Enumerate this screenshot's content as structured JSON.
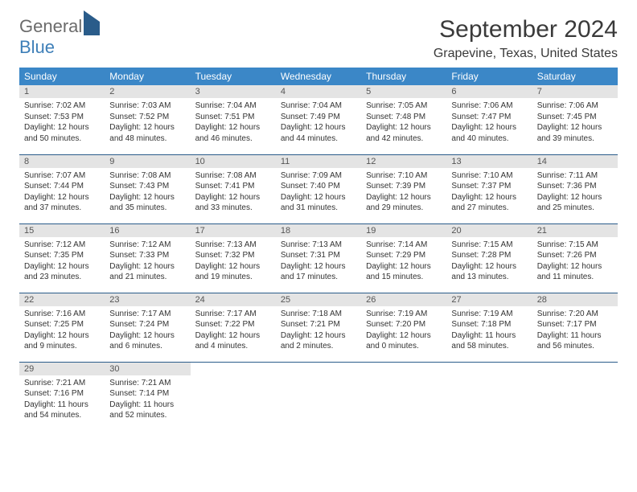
{
  "logo": {
    "general": "General",
    "blue": "Blue"
  },
  "title": "September 2024",
  "location": "Grapevine, Texas, United States",
  "colors": {
    "header_bg": "#3b87c7",
    "daynum_bg": "#e4e4e4",
    "week_divider": "#2a5c8a",
    "logo_blue": "#3e7fb8",
    "logo_gray": "#6b6b6b"
  },
  "day_headers": [
    "Sunday",
    "Monday",
    "Tuesday",
    "Wednesday",
    "Thursday",
    "Friday",
    "Saturday"
  ],
  "weeks": [
    [
      {
        "n": "1",
        "sunrise": "Sunrise: 7:02 AM",
        "sunset": "Sunset: 7:53 PM",
        "daylight": "Daylight: 12 hours and 50 minutes."
      },
      {
        "n": "2",
        "sunrise": "Sunrise: 7:03 AM",
        "sunset": "Sunset: 7:52 PM",
        "daylight": "Daylight: 12 hours and 48 minutes."
      },
      {
        "n": "3",
        "sunrise": "Sunrise: 7:04 AM",
        "sunset": "Sunset: 7:51 PM",
        "daylight": "Daylight: 12 hours and 46 minutes."
      },
      {
        "n": "4",
        "sunrise": "Sunrise: 7:04 AM",
        "sunset": "Sunset: 7:49 PM",
        "daylight": "Daylight: 12 hours and 44 minutes."
      },
      {
        "n": "5",
        "sunrise": "Sunrise: 7:05 AM",
        "sunset": "Sunset: 7:48 PM",
        "daylight": "Daylight: 12 hours and 42 minutes."
      },
      {
        "n": "6",
        "sunrise": "Sunrise: 7:06 AM",
        "sunset": "Sunset: 7:47 PM",
        "daylight": "Daylight: 12 hours and 40 minutes."
      },
      {
        "n": "7",
        "sunrise": "Sunrise: 7:06 AM",
        "sunset": "Sunset: 7:45 PM",
        "daylight": "Daylight: 12 hours and 39 minutes."
      }
    ],
    [
      {
        "n": "8",
        "sunrise": "Sunrise: 7:07 AM",
        "sunset": "Sunset: 7:44 PM",
        "daylight": "Daylight: 12 hours and 37 minutes."
      },
      {
        "n": "9",
        "sunrise": "Sunrise: 7:08 AM",
        "sunset": "Sunset: 7:43 PM",
        "daylight": "Daylight: 12 hours and 35 minutes."
      },
      {
        "n": "10",
        "sunrise": "Sunrise: 7:08 AM",
        "sunset": "Sunset: 7:41 PM",
        "daylight": "Daylight: 12 hours and 33 minutes."
      },
      {
        "n": "11",
        "sunrise": "Sunrise: 7:09 AM",
        "sunset": "Sunset: 7:40 PM",
        "daylight": "Daylight: 12 hours and 31 minutes."
      },
      {
        "n": "12",
        "sunrise": "Sunrise: 7:10 AM",
        "sunset": "Sunset: 7:39 PM",
        "daylight": "Daylight: 12 hours and 29 minutes."
      },
      {
        "n": "13",
        "sunrise": "Sunrise: 7:10 AM",
        "sunset": "Sunset: 7:37 PM",
        "daylight": "Daylight: 12 hours and 27 minutes."
      },
      {
        "n": "14",
        "sunrise": "Sunrise: 7:11 AM",
        "sunset": "Sunset: 7:36 PM",
        "daylight": "Daylight: 12 hours and 25 minutes."
      }
    ],
    [
      {
        "n": "15",
        "sunrise": "Sunrise: 7:12 AM",
        "sunset": "Sunset: 7:35 PM",
        "daylight": "Daylight: 12 hours and 23 minutes."
      },
      {
        "n": "16",
        "sunrise": "Sunrise: 7:12 AM",
        "sunset": "Sunset: 7:33 PM",
        "daylight": "Daylight: 12 hours and 21 minutes."
      },
      {
        "n": "17",
        "sunrise": "Sunrise: 7:13 AM",
        "sunset": "Sunset: 7:32 PM",
        "daylight": "Daylight: 12 hours and 19 minutes."
      },
      {
        "n": "18",
        "sunrise": "Sunrise: 7:13 AM",
        "sunset": "Sunset: 7:31 PM",
        "daylight": "Daylight: 12 hours and 17 minutes."
      },
      {
        "n": "19",
        "sunrise": "Sunrise: 7:14 AM",
        "sunset": "Sunset: 7:29 PM",
        "daylight": "Daylight: 12 hours and 15 minutes."
      },
      {
        "n": "20",
        "sunrise": "Sunrise: 7:15 AM",
        "sunset": "Sunset: 7:28 PM",
        "daylight": "Daylight: 12 hours and 13 minutes."
      },
      {
        "n": "21",
        "sunrise": "Sunrise: 7:15 AM",
        "sunset": "Sunset: 7:26 PM",
        "daylight": "Daylight: 12 hours and 11 minutes."
      }
    ],
    [
      {
        "n": "22",
        "sunrise": "Sunrise: 7:16 AM",
        "sunset": "Sunset: 7:25 PM",
        "daylight": "Daylight: 12 hours and 9 minutes."
      },
      {
        "n": "23",
        "sunrise": "Sunrise: 7:17 AM",
        "sunset": "Sunset: 7:24 PM",
        "daylight": "Daylight: 12 hours and 6 minutes."
      },
      {
        "n": "24",
        "sunrise": "Sunrise: 7:17 AM",
        "sunset": "Sunset: 7:22 PM",
        "daylight": "Daylight: 12 hours and 4 minutes."
      },
      {
        "n": "25",
        "sunrise": "Sunrise: 7:18 AM",
        "sunset": "Sunset: 7:21 PM",
        "daylight": "Daylight: 12 hours and 2 minutes."
      },
      {
        "n": "26",
        "sunrise": "Sunrise: 7:19 AM",
        "sunset": "Sunset: 7:20 PM",
        "daylight": "Daylight: 12 hours and 0 minutes."
      },
      {
        "n": "27",
        "sunrise": "Sunrise: 7:19 AM",
        "sunset": "Sunset: 7:18 PM",
        "daylight": "Daylight: 11 hours and 58 minutes."
      },
      {
        "n": "28",
        "sunrise": "Sunrise: 7:20 AM",
        "sunset": "Sunset: 7:17 PM",
        "daylight": "Daylight: 11 hours and 56 minutes."
      }
    ],
    [
      {
        "n": "29",
        "sunrise": "Sunrise: 7:21 AM",
        "sunset": "Sunset: 7:16 PM",
        "daylight": "Daylight: 11 hours and 54 minutes."
      },
      {
        "n": "30",
        "sunrise": "Sunrise: 7:21 AM",
        "sunset": "Sunset: 7:14 PM",
        "daylight": "Daylight: 11 hours and 52 minutes."
      },
      null,
      null,
      null,
      null,
      null
    ]
  ]
}
